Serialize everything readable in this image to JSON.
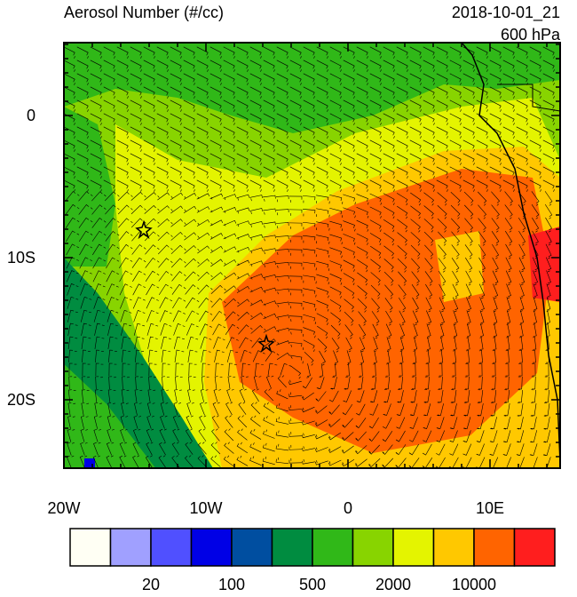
{
  "header": {
    "title": "Aerosol Number (#/cc)",
    "time": "2018-10-01_21",
    "level": "600 hPa"
  },
  "map": {
    "x_ticks": [
      "20W",
      "10W",
      "0",
      "10E"
    ],
    "y_ticks": [
      "0",
      "10S",
      "20S"
    ]
  },
  "colorbar": {
    "colors": [
      "#fffff4",
      "#a0a0ff",
      "#5050ff",
      "#0000e6",
      "#004ea0",
      "#008c40",
      "#30b818",
      "#88d400",
      "#e4f400",
      "#ffc800",
      "#ff6400",
      "#ff1e1e"
    ],
    "labels": [
      "20",
      "100",
      "500",
      "2000",
      "10000"
    ]
  }
}
